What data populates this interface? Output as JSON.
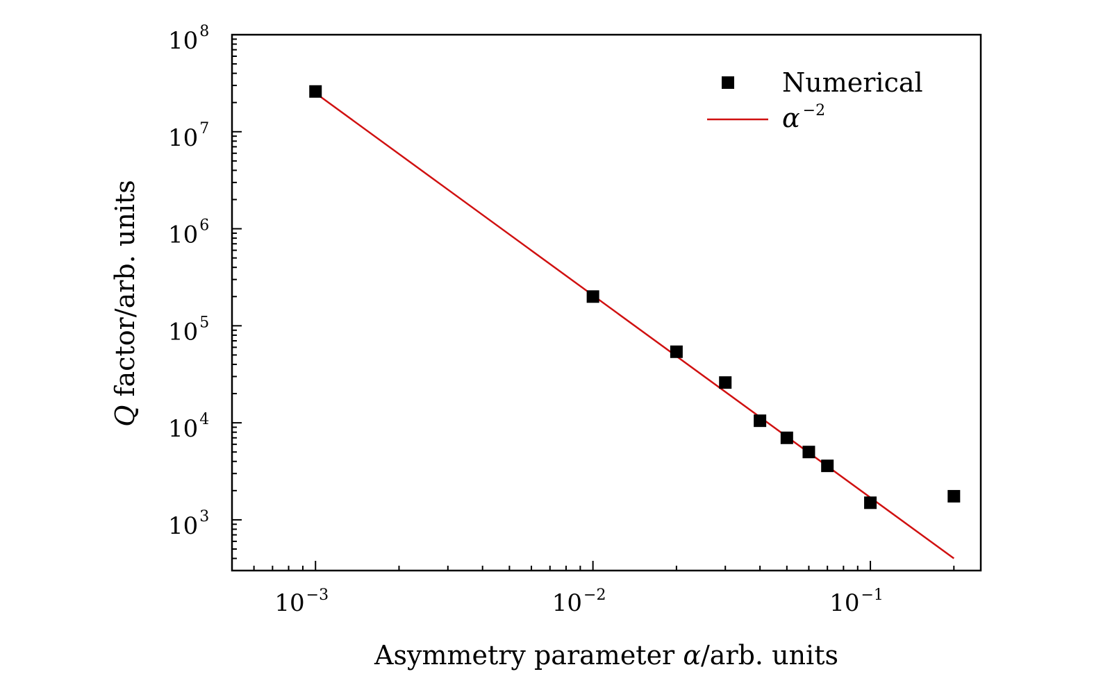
{
  "chart_data": {
    "type": "scatter",
    "title": "",
    "xscale": "log",
    "yscale": "log",
    "xlim": [
      0.0005,
      0.25
    ],
    "ylim": [
      300,
      100000000
    ],
    "xlabel": {
      "prefix": "Asymmetry parameter ",
      "symbol": "α",
      "suffix": "/arb. units"
    },
    "ylabel": {
      "symbol": "Q",
      "suffix": " factor/arb. units"
    },
    "x_ticks": [
      {
        "value": 0.001,
        "base": "10",
        "exp": "−3"
      },
      {
        "value": 0.01,
        "base": "10",
        "exp": "−2"
      },
      {
        "value": 0.1,
        "base": "10",
        "exp": "−1"
      }
    ],
    "y_ticks": [
      {
        "value": 1000,
        "base": "10",
        "exp": "3"
      },
      {
        "value": 10000,
        "base": "10",
        "exp": "4"
      },
      {
        "value": 100000,
        "base": "10",
        "exp": "5"
      },
      {
        "value": 1000000,
        "base": "10",
        "exp": "6"
      },
      {
        "value": 10000000,
        "base": "10",
        "exp": "7"
      },
      {
        "value": 100000000,
        "base": "10",
        "exp": "8"
      }
    ],
    "series": [
      {
        "name": "Numerical",
        "kind": "scatter",
        "marker": "square",
        "color": "#000000",
        "x": [
          0.001,
          0.01,
          0.02,
          0.03,
          0.04,
          0.05,
          0.06,
          0.07,
          0.1,
          0.2
        ],
        "y": [
          26000000,
          200000,
          54000,
          26000,
          10500,
          7000,
          5000,
          3600,
          1500,
          1750
        ]
      },
      {
        "name": "α",
        "name_exp": "−2",
        "kind": "line",
        "color": "#d01010",
        "x": [
          0.001,
          0.2
        ],
        "y": [
          25000000,
          400
        ]
      }
    ],
    "legend": {
      "position": "top-right"
    }
  }
}
